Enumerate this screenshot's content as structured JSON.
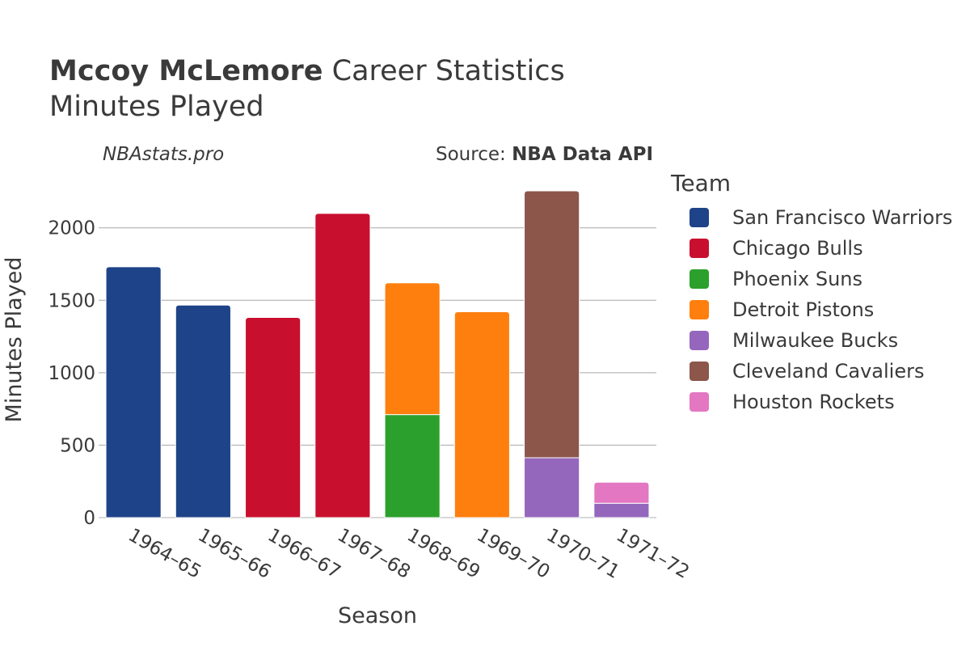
{
  "header": {
    "player": "Mccoy McLemore",
    "title_rest": " Career Statistics",
    "subtitle": "Minutes Played",
    "site": "NBAstats.pro",
    "source_prefix": "Source: ",
    "source_name": "NBA Data API"
  },
  "legend": {
    "title": "Team",
    "items": [
      {
        "label": "San Francisco Warriors",
        "color": "#1f4388"
      },
      {
        "label": "Chicago Bulls",
        "color": "#c8102e"
      },
      {
        "label": "Phoenix Suns",
        "color": "#2ca02c"
      },
      {
        "label": "Detroit Pistons",
        "color": "#ff7f0e"
      },
      {
        "label": "Milwaukee Bucks",
        "color": "#9467bd"
      },
      {
        "label": "Cleveland Cavaliers",
        "color": "#8c564b"
      },
      {
        "label": "Houston Rockets",
        "color": "#e377c2"
      }
    ]
  },
  "chart_data": {
    "type": "bar",
    "stacked": true,
    "title": "Mccoy McLemore Career Statistics",
    "subtitle": "Minutes Played",
    "xlabel": "Season",
    "ylabel": "Minutes Played",
    "categories": [
      "1964–65",
      "1965–66",
      "1966–67",
      "1967–68",
      "1968–69",
      "1969–70",
      "1970–71",
      "1971–72"
    ],
    "ylim": [
      0,
      2300
    ],
    "yticks": [
      0,
      500,
      1000,
      1500,
      2000
    ],
    "grid": true,
    "legend_position": "right",
    "series": [
      {
        "name": "San Francisco Warriors",
        "color": "#1f4388",
        "values": [
          1731,
          1467,
          0,
          0,
          0,
          0,
          0,
          0
        ]
      },
      {
        "name": "Chicago Bulls",
        "color": "#c8102e",
        "values": [
          0,
          0,
          1382,
          2100,
          0,
          0,
          0,
          0
        ]
      },
      {
        "name": "Phoenix Suns",
        "color": "#2ca02c",
        "values": [
          0,
          0,
          0,
          0,
          711,
          0,
          0,
          0
        ]
      },
      {
        "name": "Detroit Pistons",
        "color": "#ff7f0e",
        "values": [
          0,
          0,
          0,
          0,
          909,
          1421,
          0,
          0
        ]
      },
      {
        "name": "Milwaukee Bucks",
        "color": "#9467bd",
        "values": [
          0,
          0,
          0,
          0,
          0,
          0,
          413,
          99
        ]
      },
      {
        "name": "Cleveland Cavaliers",
        "color": "#8c564b",
        "values": [
          0,
          0,
          0,
          0,
          0,
          0,
          1842,
          0
        ]
      },
      {
        "name": "Houston Rockets",
        "color": "#e377c2",
        "values": [
          0,
          0,
          0,
          0,
          0,
          0,
          0,
          145
        ]
      }
    ]
  }
}
